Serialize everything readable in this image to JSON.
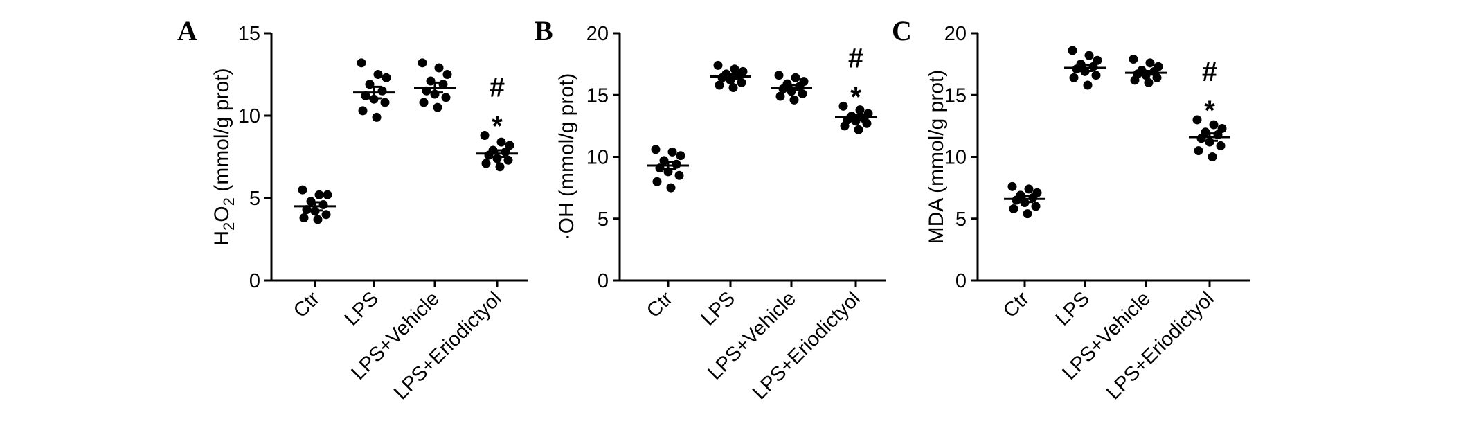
{
  "chart_data": [
    {
      "type": "scatter",
      "panel_label": "A",
      "ylabel": {
        "main": "H",
        "sub1": "2",
        "mid": "O",
        "sub2": "2",
        "rest": " (mmol/g prot)"
      },
      "ylim": [
        0,
        15
      ],
      "yticks": [
        "0",
        "5",
        "10",
        "15"
      ],
      "categories": [
        "Ctr",
        "LPS",
        "LPS+Vehicle",
        "LPS+Eriodictyol"
      ],
      "means": [
        4.5,
        11.4,
        11.7,
        7.7
      ],
      "sem": [
        0.25,
        0.35,
        0.3,
        0.2
      ],
      "points": [
        [
          5.5,
          5.2,
          5.2,
          4.8,
          4.6,
          4.3,
          4.2,
          4.0,
          3.8,
          3.7
        ],
        [
          13.2,
          12.5,
          12.3,
          11.9,
          11.5,
          11.2,
          11.0,
          10.8,
          10.3,
          9.9
        ],
        [
          13.2,
          12.9,
          12.5,
          12.1,
          11.9,
          11.5,
          11.3,
          11.1,
          10.8,
          10.5
        ],
        [
          8.8,
          8.4,
          8.2,
          7.9,
          7.8,
          7.6,
          7.4,
          7.3,
          7.1,
          6.9
        ]
      ],
      "annotations": [
        {
          "category": "LPS+Eriodictyol",
          "symbols": [
            "#",
            "*"
          ]
        }
      ]
    },
    {
      "type": "scatter",
      "panel_label": "B",
      "ylabel": {
        "main": "·OH (mmol/g prot)"
      },
      "ylim": [
        0,
        20
      ],
      "yticks": [
        "0",
        "5",
        "10",
        "15",
        "20"
      ],
      "categories": [
        "Ctr",
        "LPS",
        "LPS+Vehicle",
        "LPS+Eriodictyol"
      ],
      "means": [
        9.3,
        16.5,
        15.6,
        13.2
      ],
      "sem": [
        0.3,
        0.2,
        0.2,
        0.2
      ],
      "points": [
        [
          10.6,
          10.4,
          10.1,
          9.7,
          9.4,
          9.1,
          8.8,
          8.5,
          8.0,
          7.5
        ],
        [
          17.4,
          17.1,
          16.9,
          16.7,
          16.6,
          16.4,
          16.2,
          16.0,
          15.8,
          15.6
        ],
        [
          16.6,
          16.4,
          16.1,
          15.9,
          15.7,
          15.5,
          15.3,
          15.1,
          14.9,
          14.6
        ],
        [
          14.1,
          13.8,
          13.5,
          13.3,
          13.1,
          13.0,
          12.9,
          12.7,
          12.5,
          12.2
        ]
      ],
      "annotations": [
        {
          "category": "LPS+Eriodictyol",
          "symbols": [
            "#",
            "*"
          ]
        }
      ]
    },
    {
      "type": "scatter",
      "panel_label": "C",
      "ylabel": {
        "main": "MDA (mmol/g prot)"
      },
      "ylim": [
        0,
        20
      ],
      "yticks": [
        "0",
        "5",
        "10",
        "15",
        "20"
      ],
      "categories": [
        "Ctr",
        "LPS",
        "LPS+Vehicle",
        "LPS+Eriodictyol"
      ],
      "means": [
        6.6,
        17.2,
        16.8,
        11.6
      ],
      "sem": [
        0.25,
        0.25,
        0.15,
        0.3
      ],
      "points": [
        [
          7.6,
          7.4,
          7.1,
          6.9,
          6.7,
          6.5,
          6.3,
          6.0,
          5.8,
          5.4
        ],
        [
          18.6,
          18.2,
          17.8,
          17.5,
          17.3,
          17.1,
          16.9,
          16.6,
          16.4,
          15.8
        ],
        [
          17.9,
          17.6,
          17.3,
          17.0,
          16.9,
          16.7,
          16.6,
          16.4,
          16.2,
          16.0
        ],
        [
          13.0,
          12.6,
          12.3,
          12.0,
          11.8,
          11.5,
          11.2,
          10.9,
          10.5,
          10.0
        ]
      ],
      "annotations": [
        {
          "category": "LPS+Eriodictyol",
          "symbols": [
            "#",
            "*"
          ]
        }
      ]
    }
  ],
  "colors": {
    "ink": "#000000",
    "background": "#ffffff"
  }
}
